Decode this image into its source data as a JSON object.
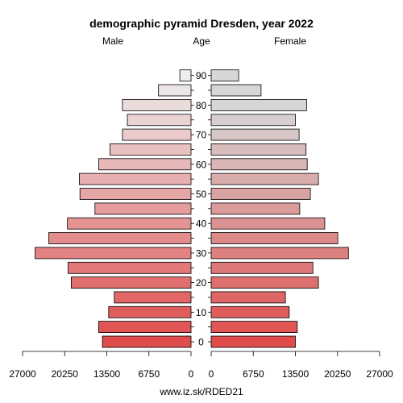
{
  "chart_data": {
    "type": "bar",
    "orientation": "horizontal",
    "title": "demographic pyramid Dresden, year 2022",
    "left_label": "Male",
    "center_label": "Age",
    "right_label": "Female",
    "age_groups": [
      "0",
      "5",
      "10",
      "15",
      "20",
      "25",
      "30",
      "35",
      "40",
      "45",
      "50",
      "55",
      "60",
      "65",
      "70",
      "75",
      "80",
      "85",
      "90"
    ],
    "age_tick_labels": [
      "0",
      "10",
      "20",
      "30",
      "40",
      "50",
      "60",
      "70",
      "80",
      "90"
    ],
    "series": [
      {
        "name": "Male",
        "values": [
          14200,
          14800,
          13200,
          12300,
          19200,
          19700,
          25000,
          22800,
          19800,
          15400,
          17800,
          17900,
          14800,
          13000,
          11000,
          10200,
          11000,
          5200,
          1800
        ]
      },
      {
        "name": "Female",
        "values": [
          13500,
          13800,
          12500,
          11900,
          17200,
          16300,
          22000,
          20300,
          18200,
          14200,
          15900,
          17200,
          15400,
          15200,
          14100,
          13500,
          15300,
          8000,
          4400
        ]
      }
    ],
    "xlim": [
      0,
      27000
    ],
    "x_tick_values": [
      27000,
      20250,
      13500,
      6750,
      0
    ],
    "x_tick_labels": [
      "27000",
      "20250",
      "13500",
      "6750",
      "0"
    ],
    "colors": {
      "male": [
        "#e04c4c",
        "#e05555",
        "#e05d5d",
        "#e16666",
        "#e26f6f",
        "#e37878",
        "#e38282",
        "#e48b8b",
        "#e59494",
        "#e69d9d",
        "#e7a6a6",
        "#e7afaf",
        "#e8b8b8",
        "#e9c1c1",
        "#eacaca",
        "#ead3d3",
        "#ebdcdc",
        "#ece5e5",
        "#eeeeee"
      ],
      "female": [
        "#e04c4c",
        "#e05555",
        "#df5d5d",
        "#df6666",
        "#de6f6f",
        "#dd7878",
        "#dd8080",
        "#dc8989",
        "#db9292",
        "#db9b9b",
        "#daa3a3",
        "#d9acac",
        "#d9b5b5",
        "#d8bdbd",
        "#d7c6c6",
        "#d7cfcf",
        "#d6d6d6",
        "#d6d6d6",
        "#d6d6d6"
      ]
    },
    "grid": false,
    "legend": "none"
  },
  "footer": "www.iz.sk/RDED21"
}
